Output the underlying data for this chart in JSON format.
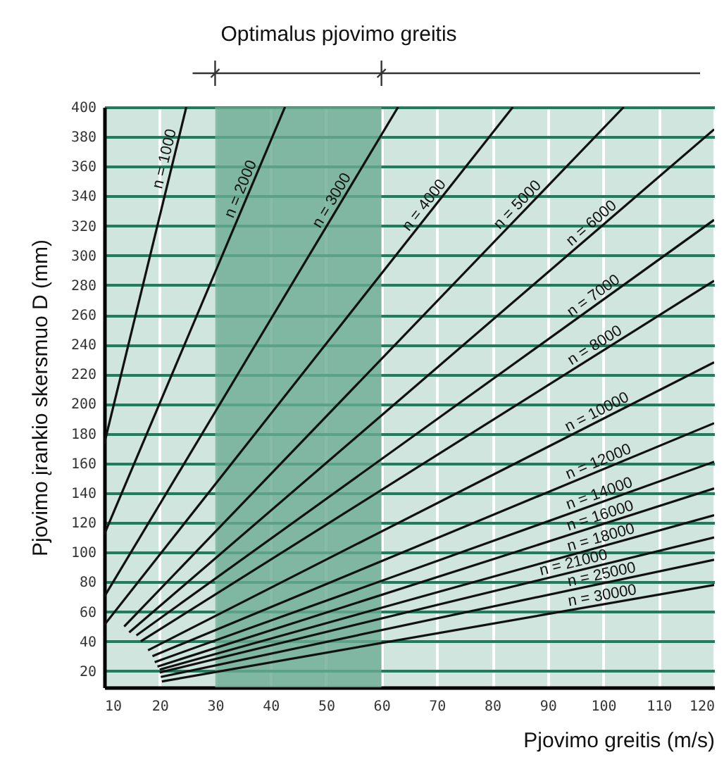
{
  "chart_data": {
    "type": "line",
    "xlabel": "Pjovimo greitis (m/s)",
    "ylabel": "Pjovimo įrankio skersmuo D (mm)",
    "xlim": [
      10,
      120
    ],
    "xticks": [
      10,
      20,
      30,
      40,
      50,
      60,
      70,
      80,
      90,
      100,
      110,
      120
    ],
    "ylim": [
      9,
      400
    ],
    "yticks": [
      20,
      40,
      60,
      80,
      100,
      120,
      140,
      160,
      180,
      200,
      220,
      240,
      260,
      280,
      300,
      320,
      340,
      360,
      380,
      400
    ],
    "grid": true,
    "marker": "none",
    "line_style": "solid",
    "bands": [
      {
        "axis": "x",
        "from": 30,
        "to": 60,
        "label": "Optimalus pjovimo greitis",
        "color": "#6aab94"
      }
    ],
    "series": [
      {
        "name": "n = 1000",
        "color": "#111111",
        "x": [
          10,
          24.8
        ],
        "values": [
          173,
          400
        ]
      },
      {
        "name": "n = 2000",
        "color": "#111111",
        "x": [
          10,
          42.6
        ],
        "values": [
          112,
          400
        ]
      },
      {
        "name": "n = 3000",
        "color": "#111111",
        "x": [
          10,
          63
        ],
        "values": [
          70,
          400
        ]
      },
      {
        "name": "n = 4000",
        "color": "#111111",
        "x": [
          10,
          83.7
        ],
        "values": [
          51,
          400
        ]
      },
      {
        "name": "n = 5000",
        "color": "#111111",
        "x": [
          13.6,
          103.7
        ],
        "values": [
          50,
          400
        ]
      },
      {
        "name": "n = 6000",
        "color": "#111111",
        "x": [
          14.5,
          120
        ],
        "values": [
          46,
          385
        ]
      },
      {
        "name": "n = 7000",
        "color": "#111111",
        "x": [
          15.8,
          120
        ],
        "values": [
          44,
          324
        ]
      },
      {
        "name": "n = 8000",
        "color": "#111111",
        "x": [
          16.6,
          120
        ],
        "values": [
          40,
          283
        ]
      },
      {
        "name": "n = 10000",
        "color": "#111111",
        "x": [
          17.9,
          120
        ],
        "values": [
          34,
          228
        ]
      },
      {
        "name": "n = 12000",
        "color": "#111111",
        "x": [
          18.7,
          120
        ],
        "values": [
          30,
          187
        ]
      },
      {
        "name": "n = 14000",
        "color": "#111111",
        "x": [
          19.1,
          120
        ],
        "values": [
          26,
          161
        ]
      },
      {
        "name": "n = 16000",
        "color": "#111111",
        "x": [
          19.6,
          120
        ],
        "values": [
          23,
          143
        ]
      },
      {
        "name": "n = 18000",
        "color": "#111111",
        "x": [
          20,
          120
        ],
        "values": [
          21,
          125
        ]
      },
      {
        "name": "n = 21000",
        "color": "#111111",
        "x": [
          20,
          120
        ],
        "values": [
          19,
          110
        ]
      },
      {
        "name": "n = 25000",
        "color": "#111111",
        "x": [
          20.2,
          120
        ],
        "values": [
          16,
          95
        ]
      },
      {
        "name": "n = 30000",
        "color": "#111111",
        "x": [
          20.4,
          120
        ],
        "values": [
          13,
          78
        ]
      }
    ]
  }
}
